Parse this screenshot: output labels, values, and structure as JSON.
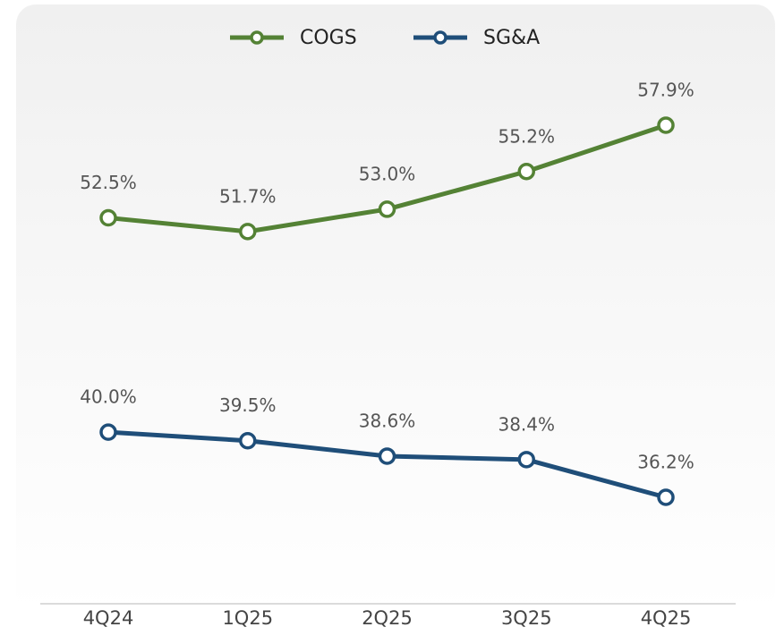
{
  "chart_data": {
    "type": "line",
    "categories": [
      "4Q24",
      "1Q25",
      "2Q25",
      "3Q25",
      "4Q25"
    ],
    "series": [
      {
        "name": "COGS",
        "color": "#548235",
        "values": [
          52.5,
          51.7,
          53.0,
          55.2,
          57.9
        ],
        "value_labels": [
          "52.5%",
          "51.7%",
          "53.0%",
          "55.2%",
          "57.9%"
        ]
      },
      {
        "name": "SG&A",
        "color": "#1f4e79",
        "values": [
          40.0,
          39.5,
          38.6,
          38.4,
          36.2
        ],
        "value_labels": [
          "40.0%",
          "39.5%",
          "38.6%",
          "38.4%",
          "36.2%"
        ]
      }
    ],
    "legend": "top"
  }
}
